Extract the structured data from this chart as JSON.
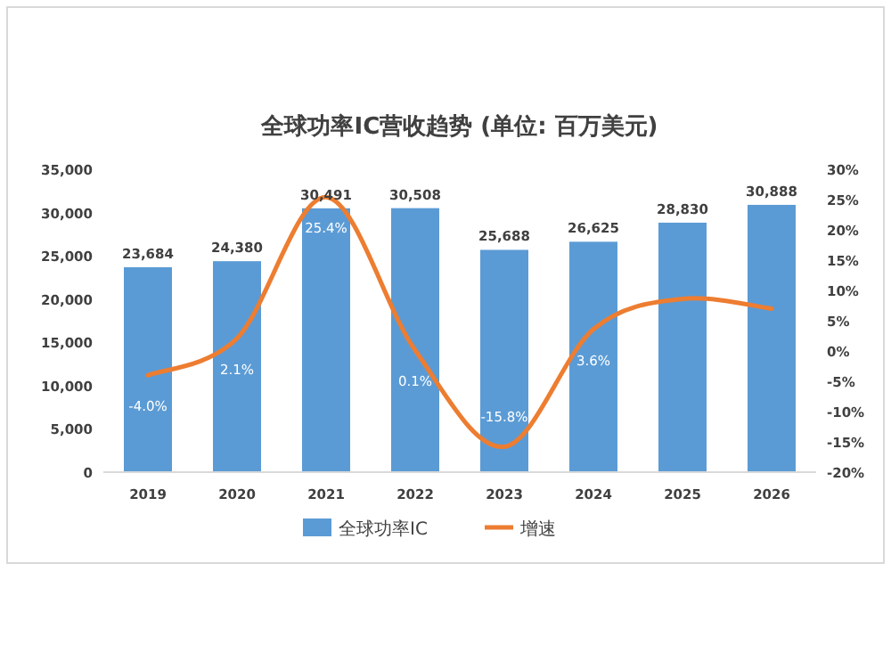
{
  "chart_data": {
    "type": "bar",
    "title": "全球功率IC营收趋势 (单位: 百万美元)",
    "categories": [
      "2019",
      "2020",
      "2021",
      "2022",
      "2023",
      "2024",
      "2025",
      "2026"
    ],
    "series": [
      {
        "name": "全球功率IC",
        "color": "#5b9bd5",
        "values": [
          23684,
          24380,
          30491,
          30508,
          25688,
          26625,
          28830,
          30888
        ],
        "value_labels": [
          "23,684",
          "24,380",
          "30,491",
          "30,508",
          "25,688",
          "26,625",
          "28,830",
          "30,888"
        ]
      },
      {
        "name": "增速",
        "type": "line",
        "axis": "y2",
        "color": "#ed7d31",
        "values": [
          -4.0,
          2.1,
          25.4,
          0.1,
          -15.8,
          3.6,
          8.6,
          7.0
        ],
        "value_labels": [
          "-4.0%",
          "2.1%",
          "25.4%",
          "0.1%",
          "-15.8%",
          "3.6%",
          null,
          null
        ]
      }
    ],
    "ylim": [
      0,
      35000
    ],
    "yticks": [
      0,
      {
        "value": 5000,
        "label": "5,000"
      },
      {
        "value": 10000,
        "label": "10,000"
      },
      {
        "value": 15000,
        "label": "15,000"
      },
      {
        "value": 20000,
        "label": "20,000"
      },
      {
        "value": 25000,
        "label": "25,000"
      },
      {
        "value": 30000,
        "label": "30,000"
      },
      {
        "value": 35000,
        "label": "35,000"
      }
    ],
    "y2lim": [
      -20,
      30
    ],
    "y2ticks": [
      {
        "value": -20,
        "label": "-20%"
      },
      {
        "value": -15,
        "label": "-15%"
      },
      {
        "value": -10,
        "label": "-10%"
      },
      {
        "value": -5,
        "label": "-5%"
      },
      {
        "value": 0,
        "label": "0%"
      },
      {
        "value": 5,
        "label": "5%"
      },
      {
        "value": 10,
        "label": "10%"
      },
      {
        "value": 15,
        "label": "15%"
      },
      {
        "value": 20,
        "label": "20%"
      },
      {
        "value": 25,
        "label": "25%"
      },
      {
        "value": 30,
        "label": "30%"
      }
    ],
    "legend": "bottom",
    "marker": "none",
    "grid": false
  }
}
